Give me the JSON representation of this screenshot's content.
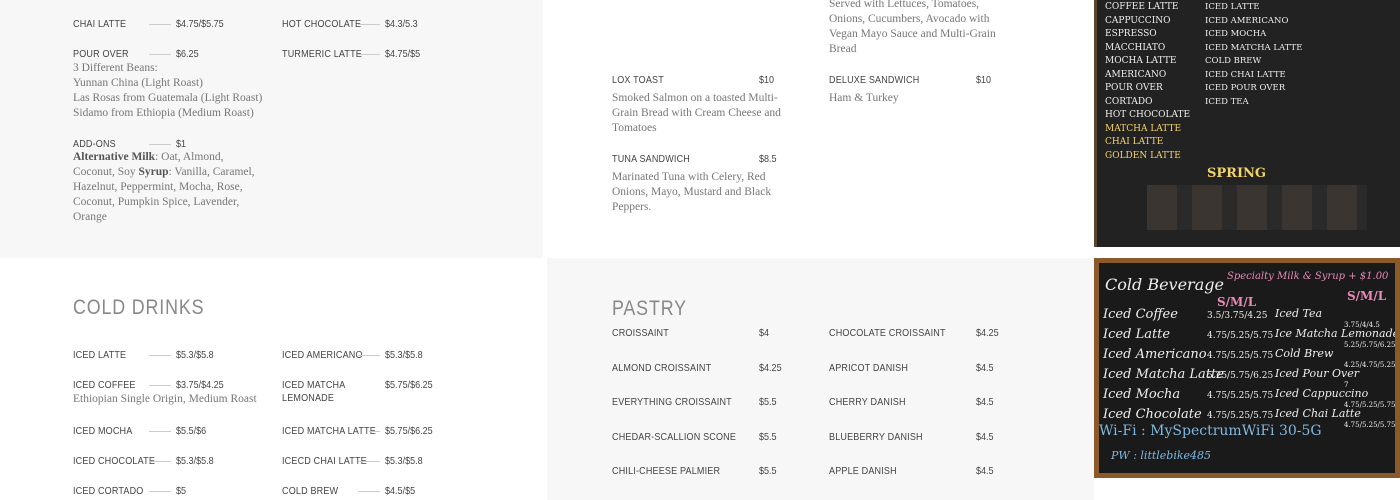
{
  "hot_drinks": {
    "col1": [
      {
        "name": "CHAI LATTE",
        "price": "$4.75/$5.75"
      },
      {
        "name": "POUR OVER",
        "price": "$6.25",
        "desc": [
          "3 Different Beans:",
          "Yunnan China (Light Roast)",
          "Las Rosas from Guatemala (Light Roast)",
          "Sidamo from Ethiopia (Medium Roast)"
        ]
      },
      {
        "name": "ADD-ONS",
        "price": "$1",
        "desc_bold1": "Alternative Milk",
        "desc_text1": ": Oat, Almond, Coconut, Soy ",
        "desc_bold2": "Syrup",
        "desc_text2": ": Vanilla, Caramel, Hazelnut, Peppermint, Mocha, Rose, Coconut, Pumpkin Spice, Lavender, Orange"
      }
    ],
    "col2": [
      {
        "name": "HOT CHOCOLATE",
        "price": "$4.3/5.3"
      },
      {
        "name": "TURMERIC LATTE",
        "price": "$4.75/$5"
      }
    ]
  },
  "sandwiches": {
    "partial_desc": [
      "Served with Lettuces, Tomatoes,",
      "Onions, Cucumbers, Avocado with",
      "Vegan Mayo Sauce and Multi-Grain",
      "Bread"
    ],
    "items": [
      {
        "name": "LOX TOAST",
        "price": "$10",
        "desc": "Smoked Salmon on a toasted Multi-Grain Bread with Cream Cheese and Tomatoes"
      },
      {
        "name": "TUNA SANDWICH",
        "price": "$8.5",
        "desc": "Marinated Tuna with Celery, Red Onions, Mayo, Mustard and Black Peppers."
      },
      {
        "name": "DELUXE SANDWICH",
        "price": "$10",
        "desc": "Ham & Turkey"
      }
    ]
  },
  "cold_drinks": {
    "title": "COLD DRINKS",
    "col1": [
      {
        "name": "ICED LATTE",
        "price": "$5.3/$5.8"
      },
      {
        "name": "ICED COFFEE",
        "price": "$3.75/$4.25",
        "desc": "Ethiopian Single Origin, Medium Roast"
      },
      {
        "name": "ICED MOCHA",
        "price": "$5.5/$6"
      },
      {
        "name": "ICED CHOCOLATE",
        "price": "$5.3/$5.8"
      },
      {
        "name": "ICED CORTADO",
        "price": "$5"
      }
    ],
    "col2": [
      {
        "name": "ICED AMERICANO",
        "price": "$5.3/$5.8"
      },
      {
        "name": "ICED MATCHA LEMONADE",
        "price": "$5.75/$6.25"
      },
      {
        "name": "ICED MATCHA LATTE",
        "price": "$5.75/$6.25"
      },
      {
        "name": "ICECD CHAI LATTE",
        "price": "$5.3/$5.8"
      },
      {
        "name": "COLD BREW",
        "price": "$4.5/$5"
      }
    ]
  },
  "pastry": {
    "title": "PASTRY",
    "col1": [
      {
        "name": "CROISSAINT",
        "price": "$4"
      },
      {
        "name": "ALMOND CROISSAINT",
        "price": "$4.25"
      },
      {
        "name": "EVERYTHING CROISSAINT",
        "price": "$5.5"
      },
      {
        "name": "CHEDAR-SCALLION SCONE",
        "price": "$5.5"
      },
      {
        "name": "CHILI-CHEESE PALMIER",
        "price": "$5.5"
      }
    ],
    "col2": [
      {
        "name": "CHOCOLATE CROISSAINT",
        "price": "$4.25"
      },
      {
        "name": "APRICOT DANISH",
        "price": "$4.5"
      },
      {
        "name": "CHERRY DANISH",
        "price": "$4.5"
      },
      {
        "name": "BLUEBERRY DANISH",
        "price": "$4.5"
      },
      {
        "name": "APPLE DANISH",
        "price": "$4.5"
      }
    ]
  },
  "hot_board": {
    "col1": [
      "COFFEE LATTE",
      "CAPPUCCINO",
      "ESPRESSO",
      "MACCHIATO",
      "MOCHA LATTE",
      "AMERICANO",
      "POUR OVER",
      "CORTADO",
      "HOT CHOCOLATE",
      "MATCHA LATTE",
      "CHAI LATTE",
      "GOLDEN LATTE"
    ],
    "col2": [
      "ICED LATTE",
      "ICED AMERICANO",
      "ICED MOCHA",
      "ICED MATCHA LATTE",
      "COLD BREW",
      "ICED CHAI LATTE",
      "ICED POUR OVER",
      "ICED TEA"
    ],
    "spring": "SPRING"
  },
  "cold_board": {
    "title": "Cold Beverage",
    "specialty": "Specialty Milk & Syrup + $1.00",
    "sizes": "S/M/L",
    "left": [
      {
        "name": "Iced Coffee",
        "price": "3.5/3.75/4.25"
      },
      {
        "name": "Iced Latte",
        "price": "4.75/5.25/5.75"
      },
      {
        "name": "Iced Americano",
        "price": "4.75/5.25/5.75"
      },
      {
        "name": "Iced Matcha Latte",
        "price": "5.25/5.75/6.25"
      },
      {
        "name": "Iced Mocha",
        "price": "4.75/5.25/5.75"
      },
      {
        "name": "Iced Chocolate",
        "price": "4.75/5.25/5.75"
      }
    ],
    "right": [
      {
        "name": "Iced Tea",
        "price": "3.75/4/4.5"
      },
      {
        "name": "Ice Matcha Lemonade",
        "price": "5.25/5.75/6.25"
      },
      {
        "name": "Cold Brew",
        "price": "4.25/4.75/5.25"
      },
      {
        "name": "Iced Pour Over",
        "price": "7"
      },
      {
        "name": "Iced Cappuccino",
        "price": "4.75/5.25/5.75"
      },
      {
        "name": "Iced Chai Latte",
        "price": "4.75/5.25/5.75"
      }
    ],
    "wifi": "Wi-Fi : MySpectrumWiFi 30-5G",
    "pw": "PW : littlebike485"
  },
  "colors": {
    "panel_gray": "#f7f7f7",
    "text": "#444444",
    "desc": "#777777",
    "chalkboard": "#1c1c1c",
    "frame": "#8a5a2b",
    "chalk_pink": "#e78ab5",
    "chalk_blue": "#7fb8e0"
  }
}
